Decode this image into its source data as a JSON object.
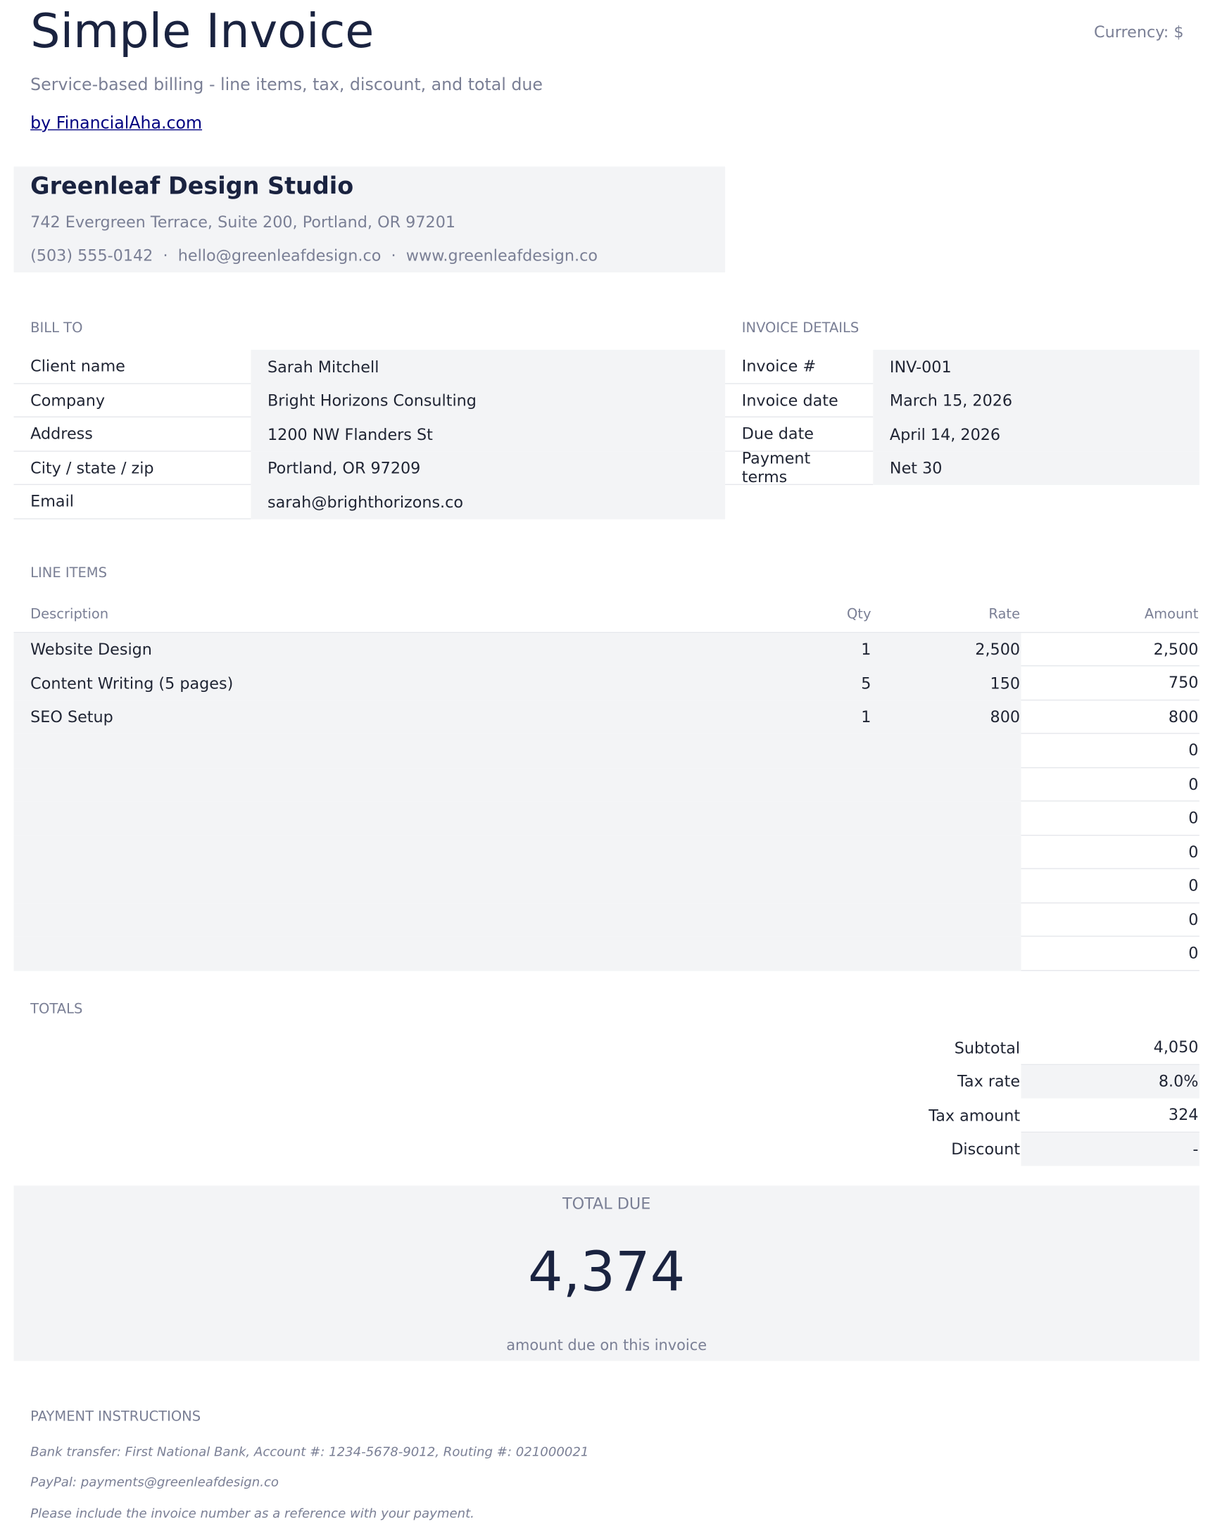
{
  "header": {
    "title": "Simple Invoice",
    "currency": "Currency: $",
    "subtitle": "Service-based billing - line items, tax, discount, and total due",
    "link": "by FinancialAha.com"
  },
  "company": {
    "name": "Greenleaf Design Studio",
    "address": "742 Evergreen Terrace, Suite 200, Portland, OR 97201",
    "contact": "(503) 555-0142  ·  hello@greenleafdesign.co  ·  www.greenleafdesign.co"
  },
  "bill_to": {
    "label": "BILL TO",
    "rows": [
      [
        "Client name",
        "Sarah Mitchell"
      ],
      [
        "Company",
        "Bright Horizons Consulting"
      ],
      [
        "Address",
        "1200 NW Flanders St"
      ],
      [
        "City / state / zip",
        "Portland, OR 97209"
      ],
      [
        "Email",
        "sarah@brighthorizons.co"
      ]
    ]
  },
  "invoice_details": {
    "label": "INVOICE DETAILS",
    "rows": [
      [
        "Invoice #",
        "INV-001"
      ],
      [
        "Invoice date",
        "March 15, 2026"
      ],
      [
        "Due date",
        "April 14, 2026"
      ],
      [
        "Payment terms",
        "Net 30"
      ]
    ]
  },
  "line_items": {
    "label": "LINE ITEMS",
    "columns": [
      "Description",
      "Qty",
      "Rate",
      "Amount"
    ],
    "rows": [
      [
        "Website Design",
        "1",
        "2,500",
        "2,500"
      ],
      [
        "Content Writing (5 pages)",
        "5",
        "150",
        "750"
      ],
      [
        "SEO Setup",
        "1",
        "800",
        "800"
      ],
      [
        null,
        null,
        null,
        "0"
      ],
      [
        null,
        null,
        null,
        "0"
      ],
      [
        null,
        null,
        null,
        "0"
      ],
      [
        null,
        null,
        null,
        "0"
      ],
      [
        null,
        null,
        null,
        "0"
      ],
      [
        null,
        null,
        null,
        "0"
      ],
      [
        null,
        null,
        null,
        "0"
      ]
    ]
  },
  "totals": {
    "label": "TOTALS",
    "rows": [
      [
        "Subtotal",
        "4,050"
      ],
      [
        "Tax rate",
        "8.0%"
      ],
      [
        "Tax amount",
        "324"
      ],
      [
        "Discount",
        "-"
      ]
    ]
  },
  "total_due": {
    "label": "TOTAL DUE",
    "value": "4,374",
    "caption": "amount due on this invoice"
  },
  "payment": {
    "label": "PAYMENT INSTRUCTIONS",
    "lines": [
      "Bank transfer: First National Bank, Account #: 1234-5678-9012, Routing #: 021000021",
      "PayPal: payments@greenleafdesign.co",
      "Please include the invoice number as a reference with your payment."
    ]
  }
}
